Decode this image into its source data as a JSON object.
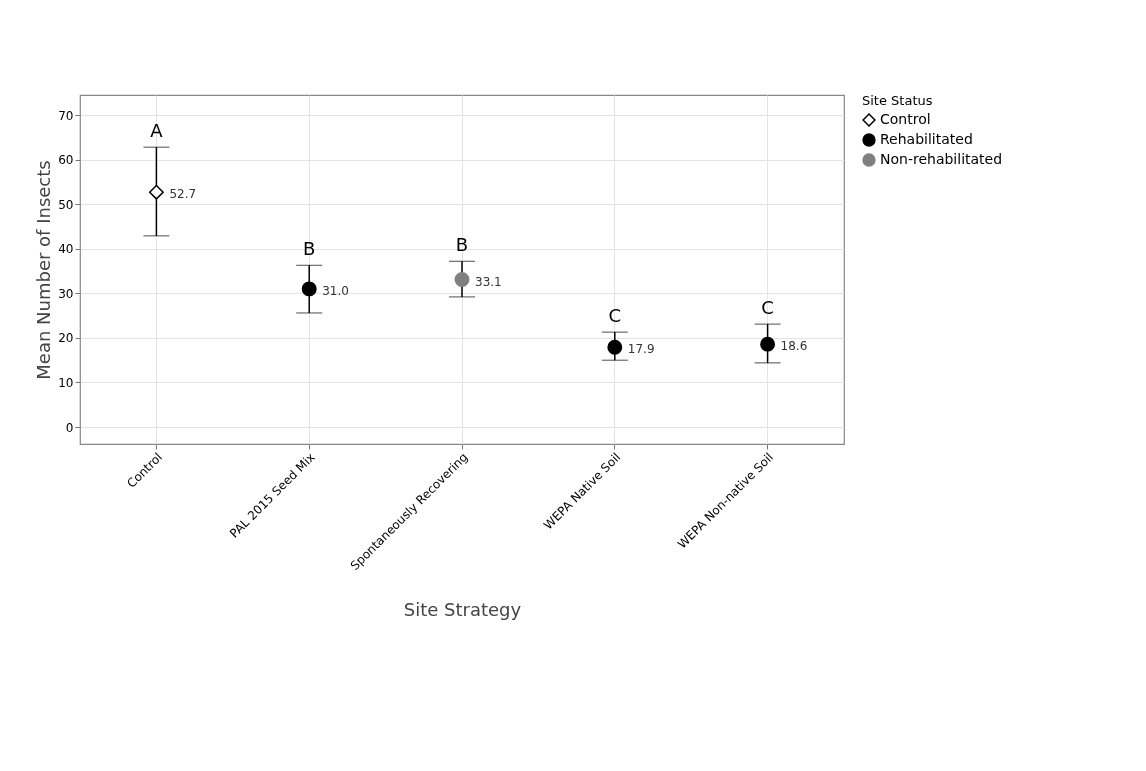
{
  "chart_data": {
    "type": "scatter",
    "xlabel": "Site Strategy",
    "ylabel": "Mean Number of Insects",
    "legend_title": "Site Status",
    "categories": [
      "Control",
      "PAL 2015 Seed Mix",
      "Spontaneously Recovering",
      "WEPA Native Soil",
      "WEPA Non-native Soil"
    ],
    "series": [
      {
        "name": "Control",
        "color": "#ffffff",
        "marker": "diamond",
        "x": [
          "Control"
        ],
        "values": [
          52.7
        ],
        "errors": [
          [
            42.9,
            62.8
          ]
        ],
        "value_labels": [
          "52.7"
        ]
      },
      {
        "name": "Rehabilitated",
        "color": "#000000",
        "marker": "circle",
        "x": [
          "PAL 2015 Seed Mix",
          "WEPA Native Soil",
          "WEPA Non-native Soil"
        ],
        "values": [
          31.0,
          17.9,
          18.6
        ],
        "errors": [
          [
            25.6,
            36.3
          ],
          [
            15.0,
            21.3
          ],
          [
            14.4,
            23.1
          ]
        ],
        "value_labels": [
          "31.0",
          "17.9",
          "18.6"
        ]
      },
      {
        "name": "Non-rehabilitated",
        "color": "#808080",
        "marker": "circle",
        "x": [
          "Spontaneously Recovering"
        ],
        "values": [
          33.1
        ],
        "errors": [
          [
            29.2,
            37.2
          ]
        ],
        "value_labels": [
          "33.1"
        ]
      }
    ],
    "ylim": [
      -3.8,
      74.5
    ],
    "yticks": [
      0,
      10,
      20,
      30,
      40,
      50,
      60,
      70
    ],
    "grid": true,
    "legend": "right",
    "annotations": [
      "A",
      "B",
      "B",
      "C",
      "C"
    ]
  }
}
